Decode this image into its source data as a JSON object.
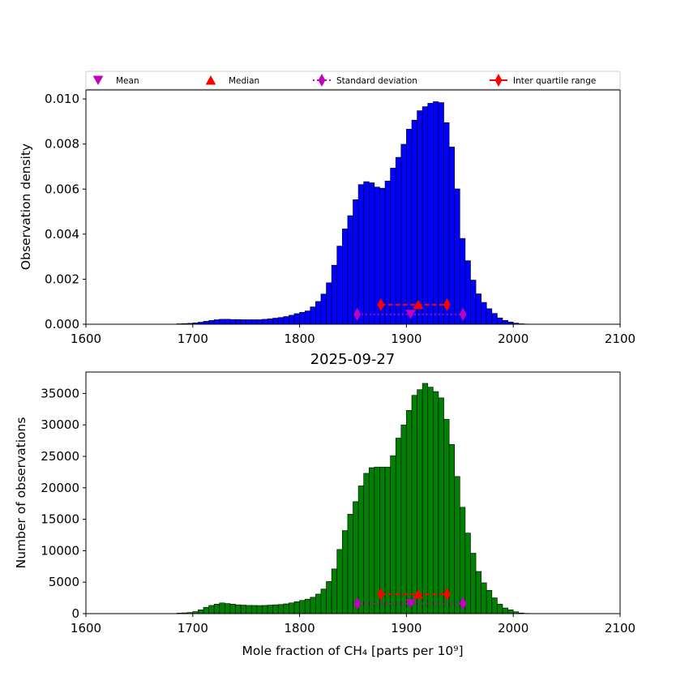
{
  "chart_data": [
    {
      "type": "bar",
      "name": "density-histogram",
      "color": "#0000ff",
      "edge_color": "#000000",
      "ylabel": "Observation density",
      "xlim": [
        1600,
        2100
      ],
      "ylim": [
        0,
        0.0104
      ],
      "x_ticks": [
        "1600",
        "1700",
        "1800",
        "1900",
        "2000",
        "2100"
      ],
      "y_ticks": [
        "0.000",
        "0.002",
        "0.004",
        "0.006",
        "0.008",
        "0.010"
      ],
      "bin_start": 1685,
      "bin_width": 5,
      "values": [
        2e-05,
        3e-05,
        4e-05,
        6e-05,
        9e-05,
        0.00013,
        0.00017,
        0.0002,
        0.00022,
        0.00022,
        0.00021,
        0.00021,
        0.0002,
        0.0002,
        0.0002,
        0.0002,
        0.00022,
        0.00024,
        0.00027,
        0.0003,
        0.00034,
        0.0004,
        0.00047,
        0.00053,
        0.00059,
        0.00077,
        0.00101,
        0.00134,
        0.00184,
        0.00262,
        0.00347,
        0.00423,
        0.00482,
        0.00553,
        0.0062,
        0.00633,
        0.00628,
        0.00609,
        0.00604,
        0.00636,
        0.00693,
        0.00741,
        0.00799,
        0.00866,
        0.00906,
        0.00948,
        0.00966,
        0.00981,
        0.00988,
        0.00984,
        0.00895,
        0.00787,
        0.00601,
        0.00381,
        0.00282,
        0.00196,
        0.00135,
        0.00097,
        0.00069,
        0.00048,
        0.00028,
        0.00017,
        0.0001,
        5e-05,
        2e-05,
        1e-05
      ],
      "markers": {
        "iqr": {
          "low": 1876,
          "mid": 1911,
          "high": 1938,
          "y": 0.00087
        },
        "std": {
          "low": 1854,
          "mid": 1904,
          "high": 1953,
          "y": 0.00044
        }
      }
    },
    {
      "type": "bar",
      "name": "count-histogram",
      "title": "2025-09-27",
      "color": "#008000",
      "edge_color": "#000000",
      "xlabel": "Mole fraction of CH₄ [parts per 10⁹]",
      "ylabel": "Number of observations",
      "xlim": [
        1600,
        2100
      ],
      "ylim": [
        0,
        38400
      ],
      "x_ticks": [
        "1600",
        "1700",
        "1800",
        "1900",
        "2000",
        "2100"
      ],
      "y_ticks": [
        "0",
        "5000",
        "10000",
        "15000",
        "20000",
        "25000",
        "30000",
        "35000"
      ],
      "bin_start": 1685,
      "bin_width": 5,
      "values": [
        80,
        120,
        180,
        320,
        600,
        1000,
        1300,
        1500,
        1700,
        1600,
        1500,
        1400,
        1350,
        1300,
        1300,
        1280,
        1300,
        1350,
        1400,
        1450,
        1550,
        1700,
        1900,
        2100,
        2300,
        2600,
        3100,
        3900,
        5100,
        7100,
        10200,
        13200,
        15800,
        17800,
        20300,
        22300,
        23200,
        23300,
        23300,
        23300,
        25100,
        27900,
        30000,
        32300,
        34700,
        35600,
        36600,
        36000,
        35300,
        34300,
        30900,
        26900,
        21800,
        16900,
        12800,
        9600,
        6700,
        4900,
        3700,
        2500,
        1500,
        900,
        600,
        300,
        100,
        40
      ],
      "markers": {
        "iqr": {
          "low": 1876,
          "mid": 1911,
          "high": 1938,
          "y": 3100
        },
        "std": {
          "low": 1854,
          "mid": 1904,
          "high": 1953,
          "y": 1600
        }
      }
    }
  ],
  "legend": {
    "items": [
      {
        "label": "Mean",
        "color": "#bf00bf",
        "marker": "triangle-down"
      },
      {
        "label": "Median",
        "color": "#ff0000",
        "marker": "triangle-up"
      },
      {
        "label": "Standard deviation",
        "color": "#bf00bf",
        "marker": "thin-diamond",
        "line": "dotted"
      },
      {
        "label": "Inter quartile range",
        "color": "#ff0000",
        "marker": "thin-diamond",
        "line": "solid"
      }
    ]
  }
}
